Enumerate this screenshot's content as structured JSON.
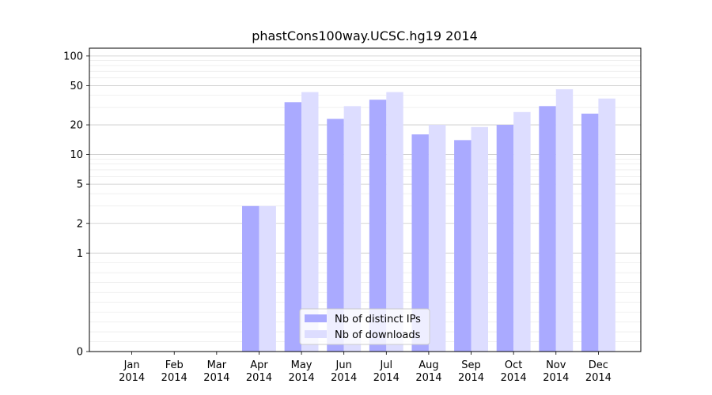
{
  "chart_data": {
    "type": "bar",
    "title": "phastCons100way.UCSC.hg19 2014",
    "xlabel": "",
    "ylabel": "",
    "yscale": "symlog",
    "ylim": [
      0,
      120
    ],
    "grid": true,
    "legend_position": "lower center",
    "categories": [
      [
        "Jan",
        "2014"
      ],
      [
        "Feb",
        "2014"
      ],
      [
        "Mar",
        "2014"
      ],
      [
        "Apr",
        "2014"
      ],
      [
        "May",
        "2014"
      ],
      [
        "Jun",
        "2014"
      ],
      [
        "Jul",
        "2014"
      ],
      [
        "Aug",
        "2014"
      ],
      [
        "Sep",
        "2014"
      ],
      [
        "Oct",
        "2014"
      ],
      [
        "Nov",
        "2014"
      ],
      [
        "Dec",
        "2014"
      ]
    ],
    "yticks": [
      {
        "value": 0,
        "label": "0"
      },
      {
        "value": 1,
        "label": "1"
      },
      {
        "value": 2,
        "label": "2"
      },
      {
        "value": 5,
        "label": "5"
      },
      {
        "value": 10,
        "label": "10"
      },
      {
        "value": 20,
        "label": "20"
      },
      {
        "value": 50,
        "label": "50"
      },
      {
        "value": 100,
        "label": "100"
      }
    ],
    "series": [
      {
        "name": "Nb of distinct IPs",
        "color": "#aaaaff",
        "values": [
          0,
          0,
          0,
          3,
          34,
          23,
          36,
          16,
          14,
          20,
          31,
          26
        ]
      },
      {
        "name": "Nb of downloads",
        "color": "#ddddff",
        "values": [
          0,
          0,
          0,
          3,
          43,
          31,
          43,
          20,
          19,
          27,
          46,
          37
        ]
      }
    ]
  }
}
